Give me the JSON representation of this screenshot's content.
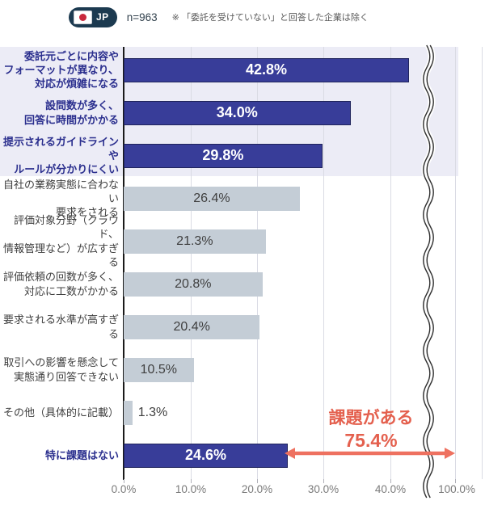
{
  "header": {
    "country_code": "JP",
    "sample_size": "n=963",
    "note": "※ 「委託を受けていない」と回答した企業は除く"
  },
  "chart_data": {
    "type": "bar",
    "orientation": "horizontal",
    "unit": "percent",
    "x_ticks": [
      "0.0%",
      "10.0%",
      "20.0%",
      "30.0%",
      "40.0%",
      "100.0%"
    ],
    "axis_break_between": [
      "40.0%",
      "100.0%"
    ],
    "xlim": [
      0,
      100
    ],
    "grid": true,
    "rows": [
      {
        "label": "委託元ごとに内容や\nフォーマットが異なり、\n対応が煩雑になる",
        "value": 42.8,
        "display": "42.8%",
        "emphasis": true
      },
      {
        "label": "設問数が多く、\n回答に時間がかかる",
        "value": 34.0,
        "display": "34.0%",
        "emphasis": true
      },
      {
        "label": "提示されるガイドラインや\nルールが分かりにくい",
        "value": 29.8,
        "display": "29.8%",
        "emphasis": true
      },
      {
        "label": "自社の業務実態に合わない\n要求をされる",
        "value": 26.4,
        "display": "26.4%",
        "emphasis": false
      },
      {
        "label": "評価対象分野（クラウド、\n情報管理など）が広すぎる",
        "value": 21.3,
        "display": "21.3%",
        "emphasis": false
      },
      {
        "label": "評価依頼の回数が多く、\n対応に工数がかかる",
        "value": 20.8,
        "display": "20.8%",
        "emphasis": false
      },
      {
        "label": "要求される水準が高すぎる",
        "value": 20.4,
        "display": "20.4%",
        "emphasis": false
      },
      {
        "label": "取引への影響を懸念して\n実態通り回答できない",
        "value": 10.5,
        "display": "10.5%",
        "emphasis": false
      },
      {
        "label": "その他（具体的に記載）",
        "value": 1.3,
        "display": "1.3%",
        "emphasis": false
      },
      {
        "label": "特に課題はない",
        "value": 24.6,
        "display": "24.6%",
        "emphasis": true
      }
    ],
    "annotation": {
      "label": "課題がある",
      "value": "75.4%",
      "span_from": 24.6,
      "span_to": 100
    }
  },
  "colors": {
    "bar_navy": "#383d99",
    "bar_navy_border": "#20245c",
    "bar_gray": "#c4cdd6",
    "highlight_band": "#ececf6",
    "annotation_red": "#e4604e",
    "arrow_red": "#ee7160",
    "label_navy": "#2b2f8e",
    "label_gray": "#3f3f3f",
    "axis_label_gray": "#7a7a7a"
  }
}
